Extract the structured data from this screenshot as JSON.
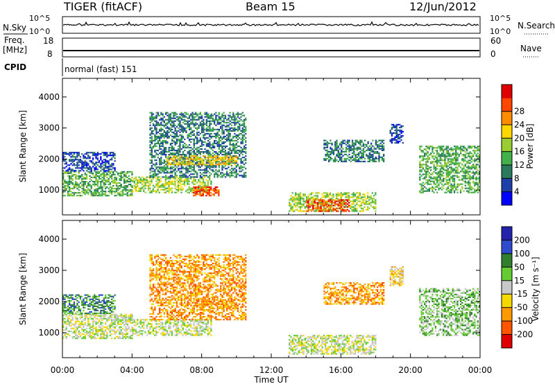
{
  "header": {
    "radar": "TIGER (fitACF)",
    "beam": "Beam 15",
    "date": "12/Jun/2012"
  },
  "nsky_panel": {
    "label": "N.Sky",
    "left_ticks": [
      "10^5",
      "10^0"
    ],
    "right_label": "N.Search",
    "right_ticks": [
      "10^5",
      "10^0"
    ]
  },
  "freq_panel": {
    "label_line1": "Freq.",
    "label_line2": "[MHz]",
    "left_ticks": [
      "18",
      "8"
    ],
    "right_label": "Nave",
    "right_ticks": [
      "60",
      "0"
    ]
  },
  "cpid_panel": {
    "label": "CPID",
    "value": "normal (fast) 151"
  },
  "colors": {
    "power": [
      "#0000ff",
      "#1f3fa8",
      "#2a7a5e",
      "#44b04a",
      "#9acd32",
      "#ffd700",
      "#ff8c00",
      "#ff4500",
      "#e00000"
    ],
    "velocity": [
      "#2222aa",
      "#2e4bd0",
      "#2f7f2f",
      "#66cc33",
      "#c8c8c8",
      "#f5d800",
      "#ff9900",
      "#ff5500",
      "#e00000"
    ],
    "nave_dots": "#000000"
  },
  "chart_data": [
    {
      "type": "heatmap",
      "title": "Power",
      "xlabel": "",
      "ylabel": "Slant Range [km]",
      "xlim": [
        "00:00",
        "24:00"
      ],
      "ylim": [
        200,
        4600
      ],
      "x_ticks": [
        "00:00",
        "04:00",
        "08:00",
        "12:00",
        "16:00",
        "20:00",
        "00:00"
      ],
      "y_ticks": [
        "1000",
        "2000",
        "3000",
        "4000"
      ],
      "colorbar": {
        "label": "Power [dB]",
        "ticks": [
          "4",
          "8",
          "12",
          "16",
          "20",
          "24",
          "28"
        ],
        "range": [
          0,
          30
        ]
      },
      "regions": [
        {
          "t": [
            0.0,
            4.0
          ],
          "range": [
            800,
            1600
          ],
          "value": 10
        },
        {
          "t": [
            0.0,
            3.0
          ],
          "range": [
            1600,
            2200
          ],
          "value": 6
        },
        {
          "t": [
            4.0,
            8.5
          ],
          "range": [
            900,
            1400
          ],
          "value": 14
        },
        {
          "t": [
            5.0,
            10.5
          ],
          "range": [
            1400,
            3500
          ],
          "value": 8
        },
        {
          "t": [
            6.0,
            10.0
          ],
          "range": [
            1800,
            2100
          ],
          "value": 18
        },
        {
          "t": [
            7.5,
            9.0
          ],
          "range": [
            800,
            1100
          ],
          "value": 26
        },
        {
          "t": [
            13.0,
            18.0
          ],
          "range": [
            300,
            900
          ],
          "value": 14
        },
        {
          "t": [
            14.0,
            16.5
          ],
          "range": [
            300,
            700
          ],
          "value": 24
        },
        {
          "t": [
            15.0,
            18.5
          ],
          "range": [
            1900,
            2600
          ],
          "value": 8
        },
        {
          "t": [
            18.8,
            19.6
          ],
          "range": [
            2500,
            3100
          ],
          "value": 6
        },
        {
          "t": [
            20.5,
            24.0
          ],
          "range": [
            900,
            2400
          ],
          "value": 12
        }
      ]
    },
    {
      "type": "heatmap",
      "title": "Velocity",
      "xlabel": "Time UT",
      "ylabel": "Slant Range [km]",
      "xlim": [
        "00:00",
        "24:00"
      ],
      "ylim": [
        200,
        4600
      ],
      "x_ticks": [
        "00:00",
        "04:00",
        "08:00",
        "12:00",
        "16:00",
        "20:00",
        "00:00"
      ],
      "y_ticks": [
        "1000",
        "2000",
        "3000",
        "4000"
      ],
      "colorbar": {
        "label": "Velocity [m s⁻¹]",
        "ticks": [
          "200",
          "100",
          "50",
          "15",
          "-15",
          "-50",
          "-100",
          "-200"
        ],
        "range": [
          -250,
          250
        ]
      },
      "regions": [
        {
          "t": [
            0.0,
            4.0
          ],
          "range": [
            800,
            1600
          ],
          "value": 0
        },
        {
          "t": [
            0.0,
            3.0
          ],
          "range": [
            1600,
            2200
          ],
          "value": 80
        },
        {
          "t": [
            4.0,
            8.5
          ],
          "range": [
            900,
            1400
          ],
          "value": -10
        },
        {
          "t": [
            5.0,
            10.5
          ],
          "range": [
            1400,
            3500
          ],
          "value": -60
        },
        {
          "t": [
            7.5,
            10.0
          ],
          "range": [
            1800,
            2100
          ],
          "value": -80
        },
        {
          "t": [
            13.0,
            18.0
          ],
          "range": [
            300,
            900
          ],
          "value": 5
        },
        {
          "t": [
            15.0,
            18.5
          ],
          "range": [
            1900,
            2600
          ],
          "value": -70
        },
        {
          "t": [
            18.8,
            19.6
          ],
          "range": [
            2500,
            3100
          ],
          "value": -30
        },
        {
          "t": [
            20.5,
            24.0
          ],
          "range": [
            900,
            2400
          ],
          "value": 20
        }
      ]
    }
  ]
}
